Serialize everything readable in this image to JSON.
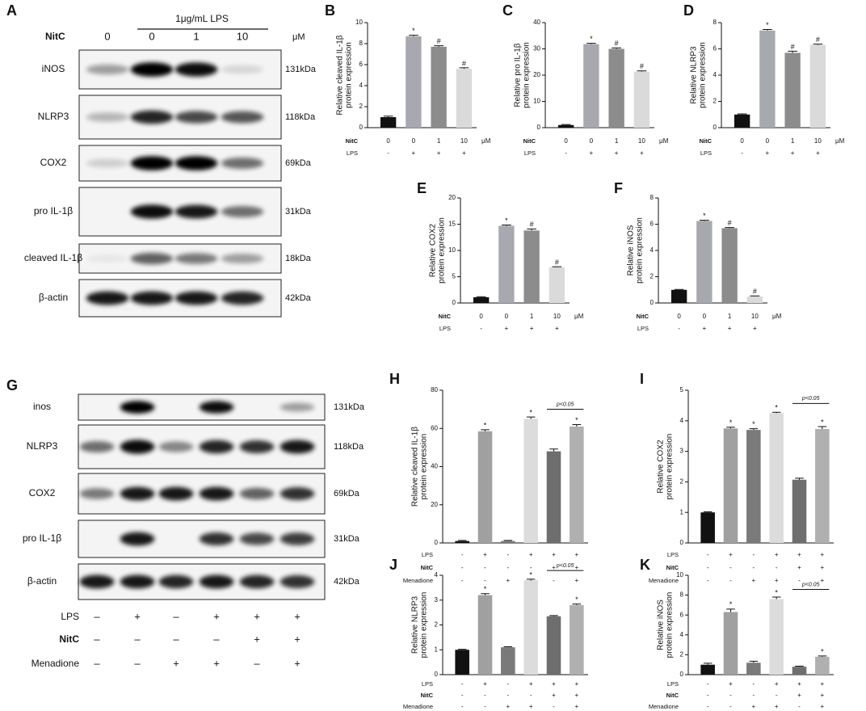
{
  "blots": [
    {
      "letter": "A",
      "title": "1μg/mL LPS",
      "header": {
        "name": "NitC",
        "lanes": [
          "0",
          "0",
          "1",
          "10"
        ],
        "unit": "μM"
      },
      "rows": [
        {
          "label": "iNOS",
          "size": "131kDa"
        },
        {
          "label": "NLRP3",
          "size": "118kDa"
        },
        {
          "label": "COX2",
          "size": "69kDa"
        },
        {
          "label": "pro IL-1β",
          "size": "31kDa"
        },
        {
          "label": "cleaved IL-1β",
          "size": "18kDa"
        },
        {
          "label": "β-actin",
          "size": "42kDa"
        }
      ]
    },
    {
      "letter": "G",
      "rows": [
        {
          "label": "inos",
          "size": "131kDa"
        },
        {
          "label": "NLRP3",
          "size": "118kDa"
        },
        {
          "label": "COX2",
          "size": "69kDa"
        },
        {
          "label": "pro IL-1β",
          "size": "31kDa"
        },
        {
          "label": "β-actin",
          "size": "42kDa"
        }
      ],
      "conditions": [
        {
          "name": "LPS",
          "labels": [
            "–",
            "+",
            "–",
            "+",
            "+",
            "+"
          ]
        },
        {
          "name": "NitC",
          "labels": [
            "–",
            "–",
            "–",
            "–",
            "+",
            "+"
          ]
        },
        {
          "name": "Menadione",
          "labels": [
            "–",
            "–",
            "+",
            "+",
            "–",
            "+"
          ]
        }
      ]
    }
  ],
  "chart_data": [
    {
      "type": "bar",
      "letter": "B",
      "ylabel": [
        "Relative cleaved IL-1β",
        "protein expression"
      ],
      "values": [
        1.0,
        8.7,
        7.7,
        5.6
      ],
      "errors": [
        0.1,
        0.1,
        0.1,
        0.1
      ],
      "markers": [
        null,
        "*",
        "#",
        "#"
      ],
      "colors": [
        "#111111",
        "#a8a8b0",
        "#8c8c8c",
        "#dadada"
      ],
      "ylim": [
        0,
        10
      ],
      "yticks": [
        0,
        2,
        4,
        6,
        8,
        10
      ],
      "conditions": [
        {
          "name": "NitC",
          "labels": [
            "0",
            "0",
            "1",
            "10"
          ],
          "unit": "μM"
        },
        {
          "name": "LPS",
          "labels": [
            "-",
            "+",
            "+",
            "+"
          ]
        }
      ]
    },
    {
      "type": "bar",
      "letter": "C",
      "ylabel": [
        "Relative pro IL-1β",
        "protein expression"
      ],
      "values": [
        1.0,
        31.8,
        30.0,
        21.3
      ],
      "errors": [
        0.2,
        0.3,
        0.4,
        0.3
      ],
      "markers": [
        null,
        "*",
        "#",
        "#"
      ],
      "colors": [
        "#111111",
        "#a8a8b0",
        "#8c8c8c",
        "#dadada"
      ],
      "ylim": [
        0,
        40
      ],
      "yticks": [
        0,
        10,
        20,
        30,
        40
      ],
      "conditions": [
        {
          "name": "NitC",
          "labels": [
            "0",
            "0",
            "1",
            "10"
          ],
          "unit": "μM"
        },
        {
          "name": "LPS",
          "labels": [
            "-",
            "+",
            "+",
            "+"
          ]
        }
      ]
    },
    {
      "type": "bar",
      "letter": "D",
      "ylabel": [
        "Relative NLRP3",
        "protein expression"
      ],
      "values": [
        1.0,
        7.4,
        5.7,
        6.3
      ],
      "errors": [
        0.05,
        0.08,
        0.12,
        0.06
      ],
      "markers": [
        null,
        "*",
        "#",
        "#"
      ],
      "colors": [
        "#111111",
        "#a8a8b0",
        "#8c8c8c",
        "#dadada"
      ],
      "ylim": [
        0,
        8
      ],
      "yticks": [
        0,
        2,
        4,
        6,
        8
      ],
      "conditions": [
        {
          "name": "NitC",
          "labels": [
            "0",
            "0",
            "1",
            "10"
          ],
          "unit": "μM"
        },
        {
          "name": "LPS",
          "labels": [
            "-",
            "+",
            "+",
            "+"
          ]
        }
      ]
    },
    {
      "type": "bar",
      "letter": "E",
      "ylabel": [
        "Relative COX2",
        "protein expression"
      ],
      "values": [
        1.1,
        14.7,
        13.8,
        6.8
      ],
      "errors": [
        0.1,
        0.15,
        0.3,
        0.1
      ],
      "markers": [
        null,
        "*",
        "#",
        "#"
      ],
      "colors": [
        "#111111",
        "#a8a8b0",
        "#8c8c8c",
        "#dadada"
      ],
      "ylim": [
        0,
        20
      ],
      "yticks": [
        0,
        5,
        10,
        15,
        20
      ],
      "conditions": [
        {
          "name": "NitC",
          "labels": [
            "0",
            "0",
            "1",
            "10"
          ],
          "unit": "μM"
        },
        {
          "name": "LPS",
          "labels": [
            "-",
            "+",
            "+",
            "+"
          ]
        }
      ]
    },
    {
      "type": "bar",
      "letter": "F",
      "ylabel": [
        "Relative iNOS",
        "protein expression"
      ],
      "values": [
        1.0,
        6.25,
        5.7,
        0.5
      ],
      "errors": [
        0.03,
        0.05,
        0.05,
        0.04
      ],
      "markers": [
        null,
        "*",
        "#",
        "#"
      ],
      "colors": [
        "#111111",
        "#a8a8b0",
        "#8c8c8c",
        "#dadada"
      ],
      "ylim": [
        0,
        8
      ],
      "yticks": [
        0,
        2,
        4,
        6,
        8
      ],
      "conditions": [
        {
          "name": "NitC",
          "labels": [
            "0",
            "0",
            "1",
            "10"
          ],
          "unit": "μM"
        },
        {
          "name": "LPS",
          "labels": [
            "-",
            "+",
            "+",
            "+"
          ]
        }
      ]
    },
    {
      "type": "bar",
      "letter": "H",
      "ylabel": [
        "Relative cleaved IL-1β",
        "protein expression"
      ],
      "values": [
        1,
        58.5,
        1,
        65,
        48,
        61
      ],
      "errors": [
        0.3,
        0.8,
        0.3,
        1.0,
        1.2,
        1.0
      ],
      "markers": [
        null,
        "*",
        null,
        "*",
        null,
        "*"
      ],
      "annotation": "p<0.05",
      "colors": [
        "#111111",
        "#a0a0a0",
        "#7a7a7a",
        "#dcdcdc",
        "#6e6e6e",
        "#b0b0b0"
      ],
      "ylim": [
        0,
        80
      ],
      "yticks": [
        0,
        20,
        40,
        60,
        80
      ],
      "conditions": [
        {
          "name": "LPS",
          "labels": [
            "-",
            "+",
            "-",
            "+",
            "+",
            "+"
          ]
        },
        {
          "name": "NitC",
          "labels": [
            "-",
            "-",
            "-",
            "-",
            "+",
            "+"
          ]
        },
        {
          "name": "Menadione",
          "labels": [
            "-",
            "-",
            "+",
            "+",
            "-",
            "+"
          ]
        }
      ]
    },
    {
      "type": "bar",
      "letter": "I",
      "ylabel": [
        "Relative COX2",
        "protein expression"
      ],
      "values": [
        1.0,
        3.75,
        3.7,
        4.25,
        2.07,
        3.73
      ],
      "errors": [
        0.02,
        0.04,
        0.04,
        0.03,
        0.05,
        0.08
      ],
      "markers": [
        null,
        "*",
        "*",
        "*",
        null,
        "*"
      ],
      "annotation": "p<0.05",
      "colors": [
        "#111111",
        "#a0a0a0",
        "#7a7a7a",
        "#dcdcdc",
        "#6e6e6e",
        "#b0b0b0"
      ],
      "ylim": [
        0,
        5
      ],
      "yticks": [
        0,
        1,
        2,
        3,
        4,
        5
      ],
      "conditions": [
        {
          "name": "LPS",
          "labels": [
            "-",
            "+",
            "-",
            "+",
            "+",
            "+"
          ]
        },
        {
          "name": "NitC",
          "labels": [
            "-",
            "-",
            "-",
            "-",
            "+",
            "+"
          ]
        },
        {
          "name": "Menadione",
          "labels": [
            "-",
            "-",
            "+",
            "+",
            "-",
            "+"
          ]
        }
      ]
    },
    {
      "type": "bar",
      "letter": "J",
      "ylabel": [
        "Relative NLRP3",
        "protein expression"
      ],
      "values": [
        1.0,
        3.2,
        1.1,
        3.8,
        2.35,
        2.8
      ],
      "errors": [
        0.02,
        0.06,
        0.02,
        0.04,
        0.03,
        0.04
      ],
      "markers": [
        null,
        "*",
        null,
        "*",
        null,
        "*"
      ],
      "annotation": "p<0.05",
      "colors": [
        "#111111",
        "#a0a0a0",
        "#7a7a7a",
        "#dcdcdc",
        "#6e6e6e",
        "#b0b0b0"
      ],
      "ylim": [
        0,
        4
      ],
      "yticks": [
        0,
        1,
        2,
        3,
        4
      ],
      "conditions": [
        {
          "name": "LPS",
          "labels": [
            "-",
            "+",
            "-",
            "+",
            "+",
            "+"
          ]
        },
        {
          "name": "NitC",
          "labels": [
            "-",
            "-",
            "-",
            "-",
            "+",
            "+"
          ]
        },
        {
          "name": "Menadione",
          "labels": [
            "-",
            "-",
            "+",
            "+",
            "-",
            "+"
          ]
        }
      ]
    },
    {
      "type": "bar",
      "letter": "K",
      "ylabel": [
        "Relative iNOS",
        "protein expression"
      ],
      "values": [
        1.0,
        6.3,
        1.2,
        7.6,
        0.8,
        1.8
      ],
      "errors": [
        0.15,
        0.3,
        0.15,
        0.2,
        0.05,
        0.08
      ],
      "markers": [
        null,
        "*",
        null,
        "*",
        null,
        "*"
      ],
      "annotation": "p<0.05",
      "colors": [
        "#111111",
        "#a0a0a0",
        "#7a7a7a",
        "#dcdcdc",
        "#6e6e6e",
        "#b0b0b0"
      ],
      "ylim": [
        0,
        10
      ],
      "yticks": [
        0,
        2,
        4,
        6,
        8,
        10
      ],
      "conditions": [
        {
          "name": "LPS",
          "labels": [
            "-",
            "+",
            "-",
            "+",
            "+",
            "+"
          ]
        },
        {
          "name": "NitC",
          "labels": [
            "-",
            "-",
            "-",
            "-",
            "+",
            "+"
          ]
        },
        {
          "name": "Menadione",
          "labels": [
            "-",
            "-",
            "+",
            "+",
            "-",
            "+"
          ]
        }
      ]
    }
  ]
}
